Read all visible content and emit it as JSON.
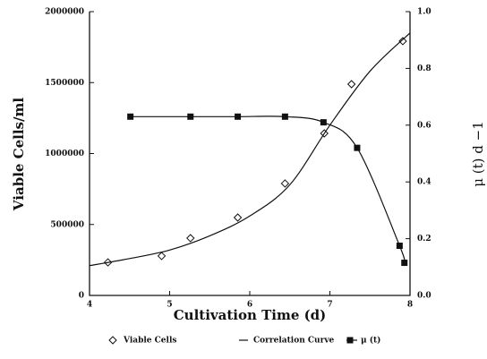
{
  "chart_data": {
    "type": "line",
    "xlabel": "Cultivation Time (d)",
    "ylabel": "Viable Cells/ml",
    "y2label": "μ (t)   d −1",
    "xlim": [
      4,
      8
    ],
    "xticks": [
      4,
      5,
      6,
      7,
      8
    ],
    "ylim": [
      0,
      2000000
    ],
    "yticks": [
      0,
      500000,
      1000000,
      1500000,
      2000000
    ],
    "y2lim": [
      0,
      1
    ],
    "y2ticks": [
      {
        "value": 0,
        "label": "0.0"
      },
      {
        "value": 0.2,
        "label": "0.2"
      },
      {
        "value": 0.4,
        "label": "0.4"
      },
      {
        "value": 0.6,
        "label": "0.6"
      },
      {
        "value": 0.8,
        "label": "0.8"
      },
      {
        "value": 1,
        "label": "1.0"
      }
    ],
    "series": [
      {
        "name": "Viable Cells",
        "color": "#111111",
        "marker": "diamond",
        "line": false,
        "x": [
          4.23,
          4.9,
          5.26,
          5.85,
          6.44,
          6.93,
          7.27,
          7.91
        ],
        "values": [
          233000,
          278000,
          404000,
          549000,
          789000,
          1142000,
          1489000,
          1792000
        ]
      },
      {
        "name": "Correlation Curve",
        "color": "#111111",
        "marker": "none",
        "line": true,
        "x": [
          4,
          4.5,
          5,
          5.5,
          6,
          6.5,
          7,
          7.5,
          8
        ],
        "values": [
          210000,
          260000,
          320000,
          420000,
          560000,
          780000,
          1200000,
          1580000,
          1850000
        ]
      },
      {
        "name": "μ (t)",
        "color": "#111111",
        "marker": "square",
        "line": true,
        "axis": "y2",
        "x": [
          4.51,
          5.26,
          5.85,
          6.44,
          6.92,
          7.34,
          7.87,
          7.93
        ],
        "values": [
          0.63,
          0.63,
          0.63,
          0.63,
          0.61,
          0.52,
          0.175,
          0.115
        ]
      }
    ]
  }
}
